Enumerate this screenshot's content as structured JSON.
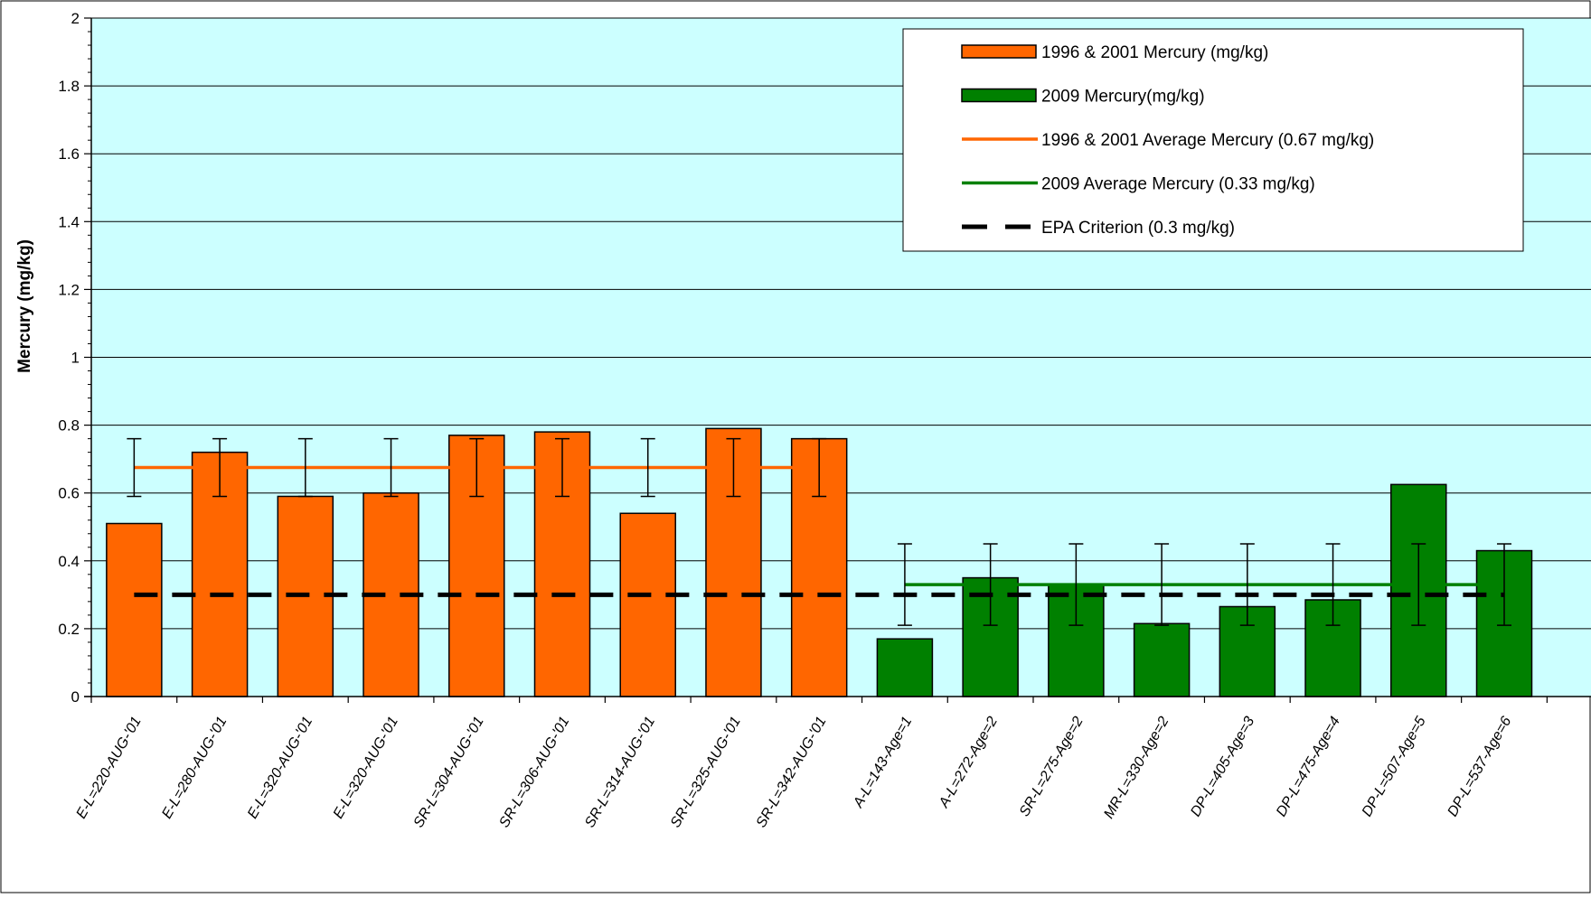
{
  "chart_data": {
    "type": "bar",
    "xlabel": "",
    "ylabel": "Mercury (mg/kg)",
    "ylim": [
      0,
      2
    ],
    "yticks": [
      "0",
      "0.2",
      "0.4",
      "0.6",
      "0.8",
      "1",
      "1.2",
      "1.4",
      "1.6",
      "1.8",
      "2"
    ],
    "grid": true,
    "legend_position": "top-right",
    "categories": [
      "E-L=220-AUG-'01",
      "E-L=280-AUG-'01",
      "E-L=320-AUG-'01",
      "E-L=320-AUG-'01",
      "SR-L=304-AUG-'01",
      "SR-L=306-AUG-'01",
      "SR-L=314-AUG-'01",
      "SR-L=325-AUG-'01",
      "SR-L=342-AUG-'01",
      "A-L=143-Age=1",
      "A-L=272-Age=2",
      "SR-L=275-Age=2",
      "MR-L=330-Age=2",
      "DP-L=405-Age=3",
      "DP-L=475-Age=4",
      "DP-L=507-Age=5",
      "DP-L=537-Age=6"
    ],
    "series": [
      {
        "name": "1996 & 2001 Mercury (mg/kg)",
        "color": "#ff6600",
        "values": [
          0.51,
          0.72,
          0.59,
          0.6,
          0.77,
          0.78,
          0.54,
          0.79,
          0.76,
          null,
          null,
          null,
          null,
          null,
          null,
          null,
          null
        ],
        "error_low": 0.59,
        "error_high": 0.76
      },
      {
        "name": "2009 Mercury(mg/kg)",
        "color": "#008000",
        "values": [
          null,
          null,
          null,
          null,
          null,
          null,
          null,
          null,
          null,
          0.17,
          0.35,
          0.33,
          0.215,
          0.265,
          0.285,
          0.625,
          0.43
        ],
        "error_low": 0.21,
        "error_high": 0.45
      }
    ],
    "reference_lines": [
      {
        "name": "1996 & 2001 Average Mercury (0.67 mg/kg)",
        "value": 0.675,
        "color": "#ff6600",
        "dashed": false,
        "from": 0,
        "to": 8
      },
      {
        "name": "2009 Average Mercury (0.33 mg/kg)",
        "value": 0.33,
        "color": "#008000",
        "dashed": false,
        "from": 9,
        "to": 16
      },
      {
        "name": "EPA Criterion (0.3 mg/kg)",
        "value": 0.3,
        "color": "#000000",
        "dashed": true,
        "from": 0,
        "to": 16
      }
    ],
    "legend": [
      {
        "label": "1996 & 2001 Mercury (mg/kg)",
        "kind": "bar",
        "color": "#ff6600"
      },
      {
        "label": "2009 Mercury(mg/kg)",
        "kind": "bar",
        "color": "#008000"
      },
      {
        "label": "1996 & 2001 Average Mercury (0.67 mg/kg)",
        "kind": "line",
        "color": "#ff6600"
      },
      {
        "label": "2009 Average Mercury (0.33 mg/kg)",
        "kind": "line",
        "color": "#008000"
      },
      {
        "label": "EPA Criterion (0.3 mg/kg)",
        "kind": "dashed",
        "color": "#000000"
      }
    ],
    "plot_background": "#ccffff"
  }
}
